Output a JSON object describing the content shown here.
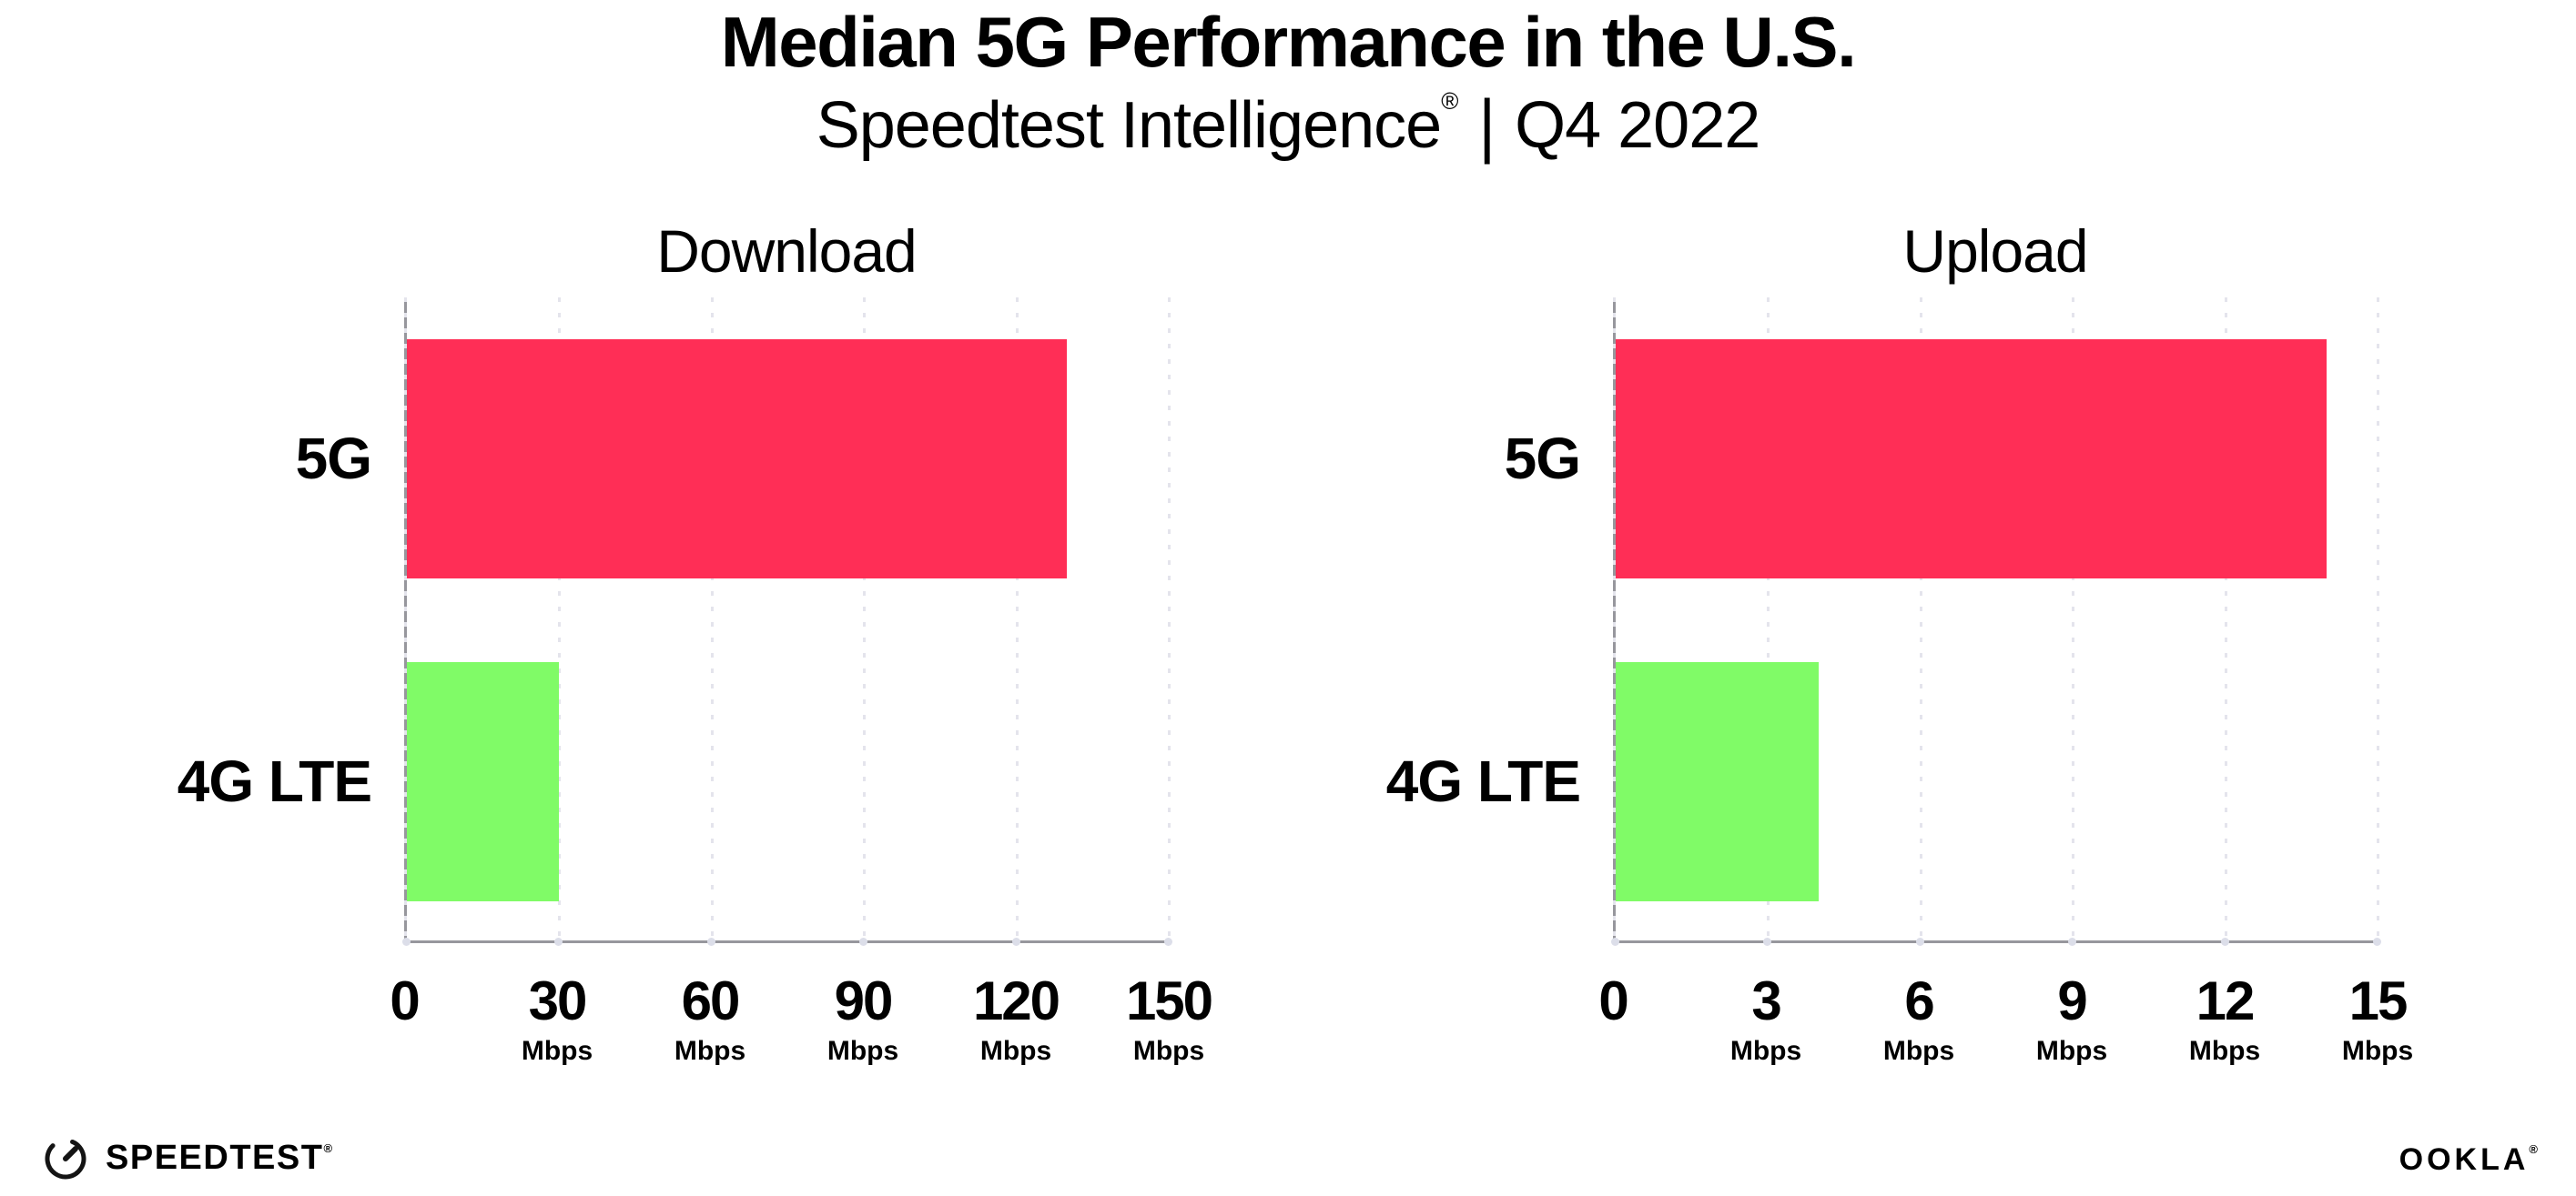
{
  "header": {
    "title": "Median 5G Performance in the U.S.",
    "subtitle": {
      "brand": "Speedtest Intelligence",
      "reg_mark": "®",
      "separator": "|",
      "period": "Q4 2022"
    }
  },
  "chart_data": [
    {
      "type": "bar",
      "orientation": "horizontal",
      "title": "Download",
      "categories": [
        "5G",
        "4G LTE"
      ],
      "values": [
        130,
        30
      ],
      "unit": "Mbps",
      "xlim": [
        0,
        150
      ],
      "xticks": [
        0,
        30,
        60,
        90,
        120,
        150
      ],
      "bar_colors": [
        "#FF2E56",
        "#80FB67"
      ],
      "grid": "dotted-vertical",
      "legend": "none"
    },
    {
      "type": "bar",
      "orientation": "horizontal",
      "title": "Upload",
      "categories": [
        "5G",
        "4G LTE"
      ],
      "values": [
        14,
        4
      ],
      "unit": "Mbps",
      "xlim": [
        0,
        15
      ],
      "xticks": [
        0,
        3,
        6,
        9,
        12,
        15
      ],
      "bar_colors": [
        "#FF2E56",
        "#80FB67"
      ],
      "grid": "dotted-vertical",
      "legend": "none"
    }
  ],
  "footer": {
    "speedtest": {
      "label": "SPEEDTEST",
      "mark": "®"
    },
    "ookla": {
      "label": "OOKLA",
      "mark": "®"
    }
  },
  "colors": {
    "bar_5g": "#FF2E56",
    "bar_4g_lte": "#80FB67",
    "gridline": "#E4E4EC",
    "axis_line": "#97979D",
    "axis_tick_dot": "#DCDEE9",
    "text": "#000000",
    "background": "#FFFFFF"
  }
}
